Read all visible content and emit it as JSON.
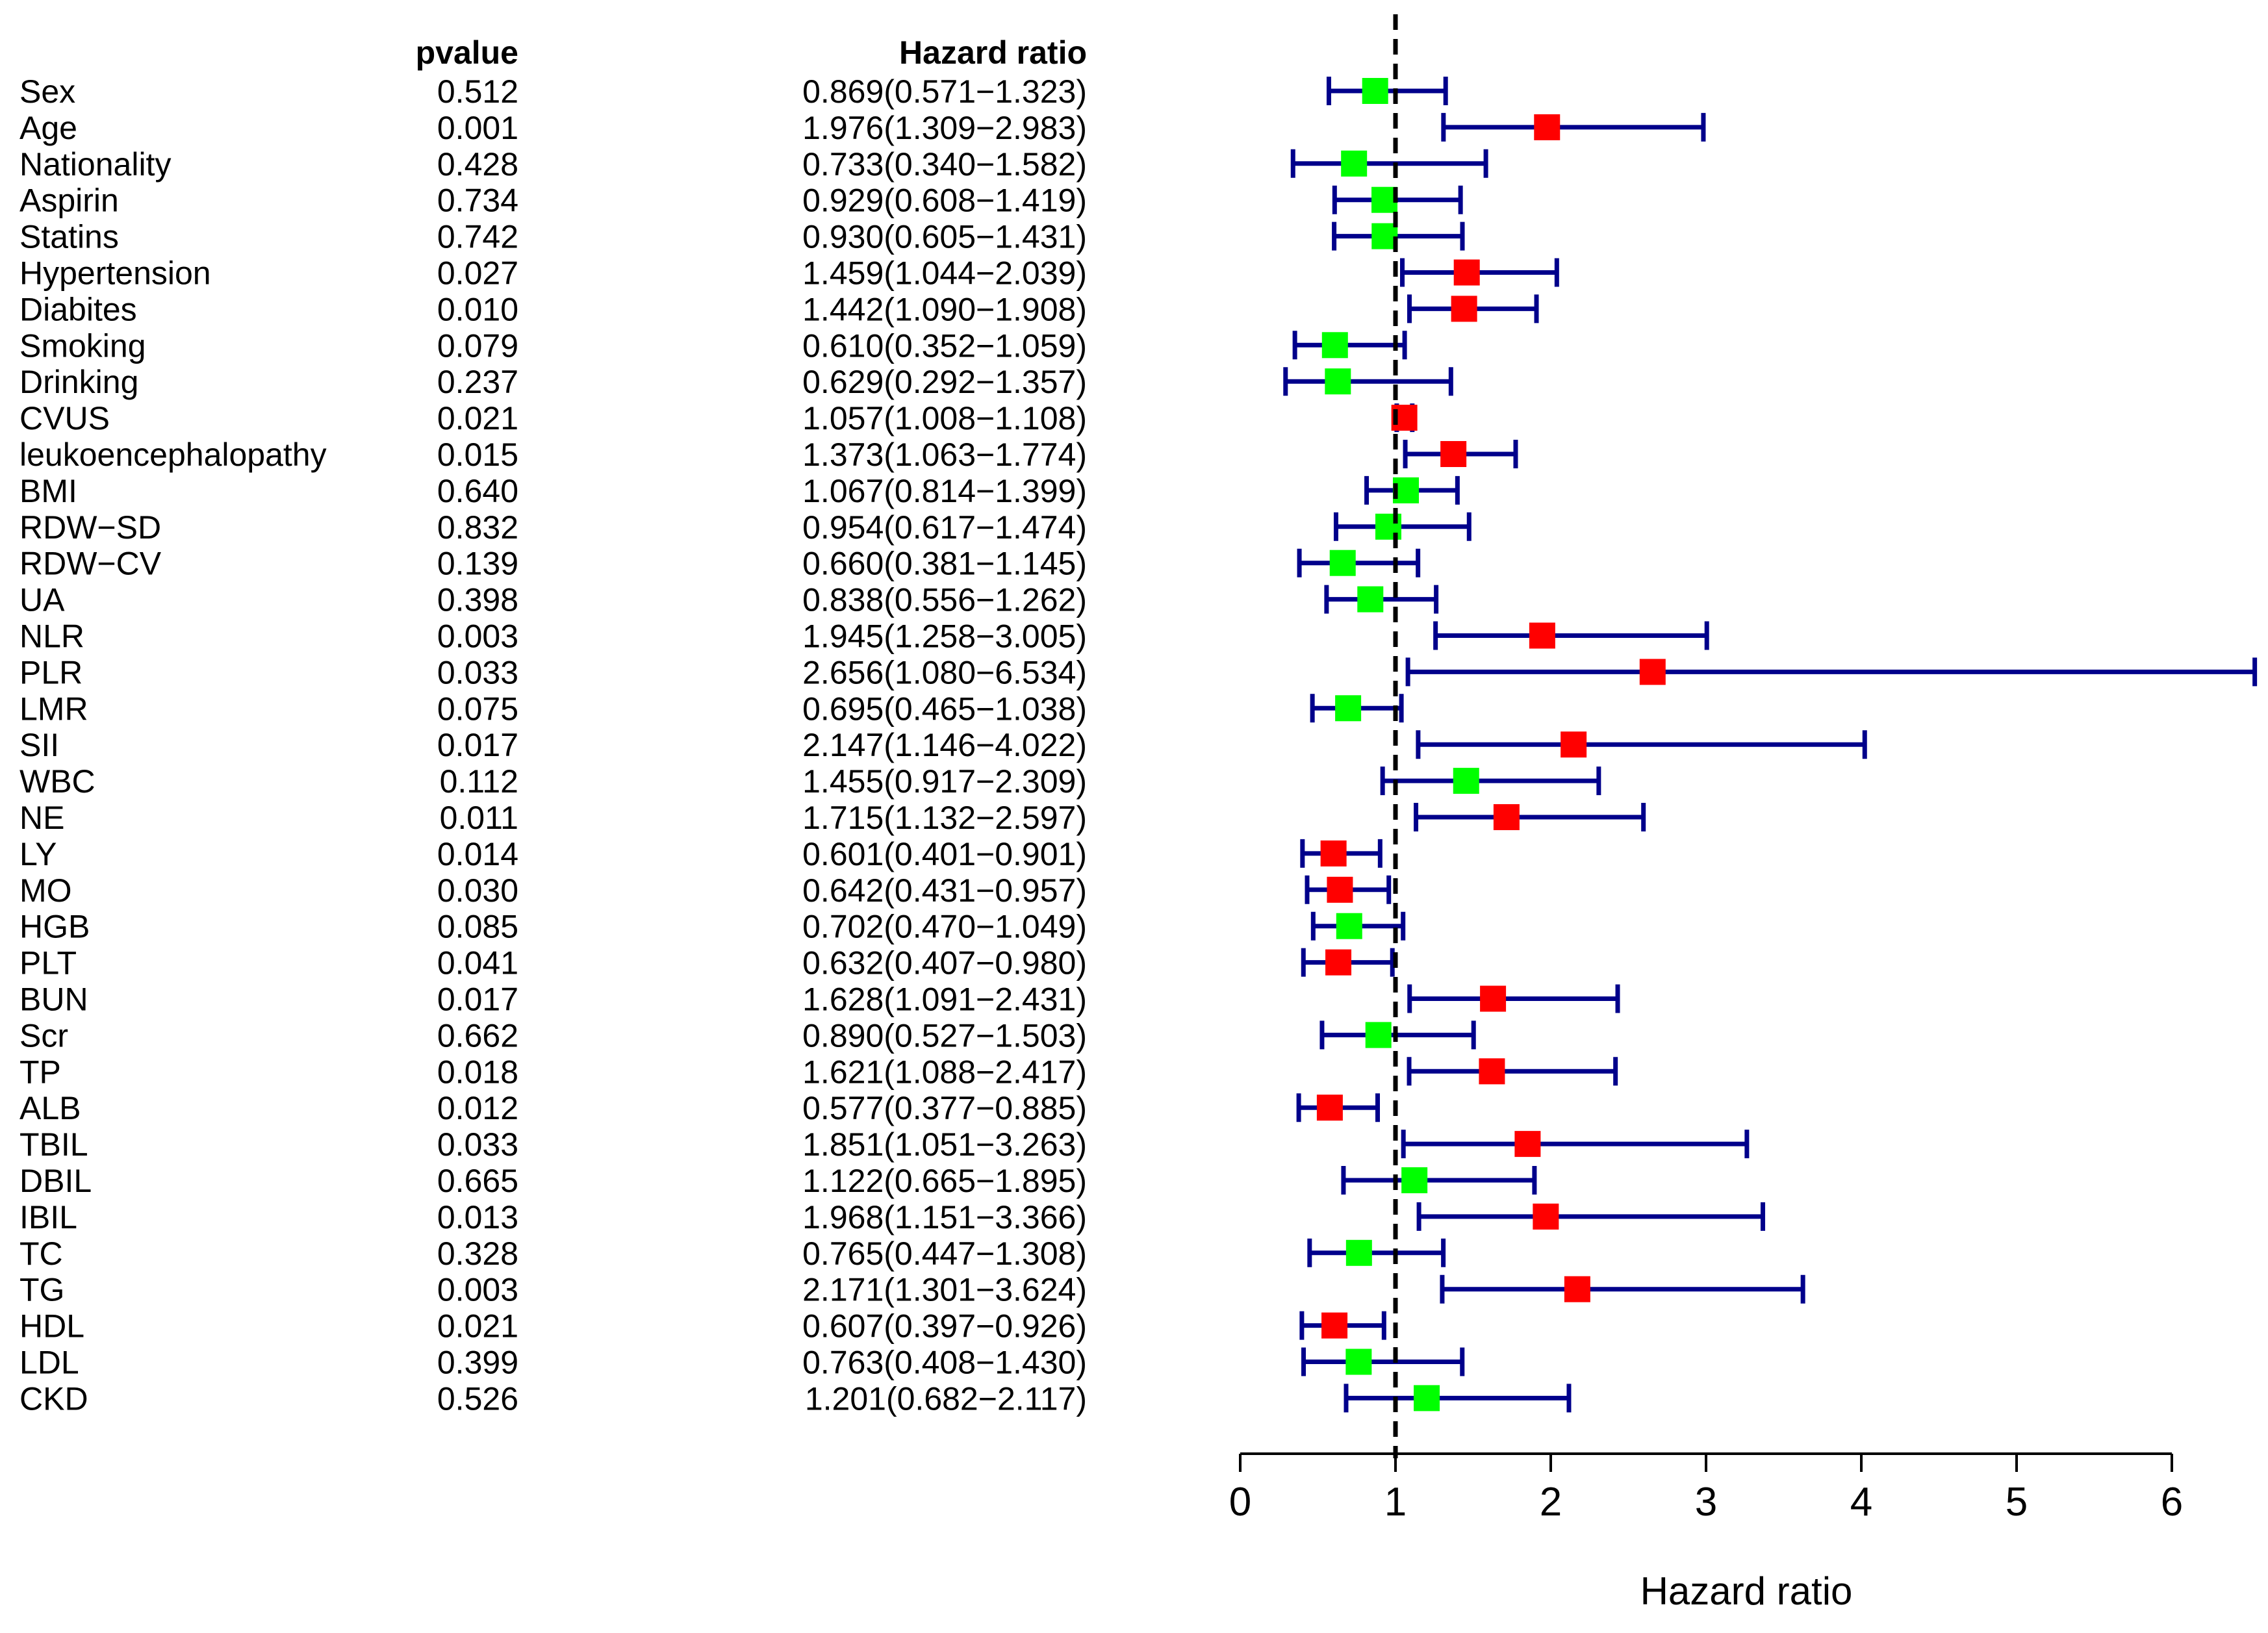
{
  "chart_data": {
    "type": "forest",
    "columns": {
      "variable": "",
      "pvalue": "pvalue",
      "hr": "Hazard ratio"
    },
    "xlabel": "Hazard ratio",
    "xlim": [
      0,
      6
    ],
    "ticks": [
      0,
      1,
      2,
      3,
      4,
      5,
      6
    ],
    "reference_line": 1,
    "colors": {
      "significant": "#ff0000",
      "not_significant": "#00ff00",
      "ci": "#00008b",
      "axis": "#000000",
      "text": "#000000"
    },
    "rows": [
      {
        "name": "Sex",
        "pvalue": "0.512",
        "hr_text": "0.869(0.571−1.323)",
        "hr": 0.869,
        "lower": 0.571,
        "upper": 1.323
      },
      {
        "name": "Age",
        "pvalue": "0.001",
        "hr_text": "1.976(1.309−2.983)",
        "hr": 1.976,
        "lower": 1.309,
        "upper": 2.983
      },
      {
        "name": "Nationality",
        "pvalue": "0.428",
        "hr_text": "0.733(0.340−1.582)",
        "hr": 0.733,
        "lower": 0.34,
        "upper": 1.582
      },
      {
        "name": "Aspirin",
        "pvalue": "0.734",
        "hr_text": "0.929(0.608−1.419)",
        "hr": 0.929,
        "lower": 0.608,
        "upper": 1.419
      },
      {
        "name": "Statins",
        "pvalue": "0.742",
        "hr_text": "0.930(0.605−1.431)",
        "hr": 0.93,
        "lower": 0.605,
        "upper": 1.431
      },
      {
        "name": "Hypertension",
        "pvalue": "0.027",
        "hr_text": "1.459(1.044−2.039)",
        "hr": 1.459,
        "lower": 1.044,
        "upper": 2.039
      },
      {
        "name": "Diabites",
        "pvalue": "0.010",
        "hr_text": "1.442(1.090−1.908)",
        "hr": 1.442,
        "lower": 1.09,
        "upper": 1.908
      },
      {
        "name": "Smoking",
        "pvalue": "0.079",
        "hr_text": "0.610(0.352−1.059)",
        "hr": 0.61,
        "lower": 0.352,
        "upper": 1.059
      },
      {
        "name": "Drinking",
        "pvalue": "0.237",
        "hr_text": "0.629(0.292−1.357)",
        "hr": 0.629,
        "lower": 0.292,
        "upper": 1.357
      },
      {
        "name": "CVUS",
        "pvalue": "0.021",
        "hr_text": "1.057(1.008−1.108)",
        "hr": 1.057,
        "lower": 1.008,
        "upper": 1.108
      },
      {
        "name": "leukoencephalopathy",
        "pvalue": "0.015",
        "hr_text": "1.373(1.063−1.774)",
        "hr": 1.373,
        "lower": 1.063,
        "upper": 1.774
      },
      {
        "name": "BMI",
        "pvalue": "0.640",
        "hr_text": "1.067(0.814−1.399)",
        "hr": 1.067,
        "lower": 0.814,
        "upper": 1.399
      },
      {
        "name": "RDW−SD",
        "pvalue": "0.832",
        "hr_text": "0.954(0.617−1.474)",
        "hr": 0.954,
        "lower": 0.617,
        "upper": 1.474
      },
      {
        "name": "RDW−CV",
        "pvalue": "0.139",
        "hr_text": "0.660(0.381−1.145)",
        "hr": 0.66,
        "lower": 0.381,
        "upper": 1.145
      },
      {
        "name": "UA",
        "pvalue": "0.398",
        "hr_text": "0.838(0.556−1.262)",
        "hr": 0.838,
        "lower": 0.556,
        "upper": 1.262
      },
      {
        "name": "NLR",
        "pvalue": "0.003",
        "hr_text": "1.945(1.258−3.005)",
        "hr": 1.945,
        "lower": 1.258,
        "upper": 3.005
      },
      {
        "name": "PLR",
        "pvalue": "0.033",
        "hr_text": "2.656(1.080−6.534)",
        "hr": 2.656,
        "lower": 1.08,
        "upper": 6.534
      },
      {
        "name": "LMR",
        "pvalue": "0.075",
        "hr_text": "0.695(0.465−1.038)",
        "hr": 0.695,
        "lower": 0.465,
        "upper": 1.038
      },
      {
        "name": "SII",
        "pvalue": "0.017",
        "hr_text": "2.147(1.146−4.022)",
        "hr": 2.147,
        "lower": 1.146,
        "upper": 4.022
      },
      {
        "name": "WBC",
        "pvalue": "0.112",
        "hr_text": "1.455(0.917−2.309)",
        "hr": 1.455,
        "lower": 0.917,
        "upper": 2.309
      },
      {
        "name": "NE",
        "pvalue": "0.011",
        "hr_text": "1.715(1.132−2.597)",
        "hr": 1.715,
        "lower": 1.132,
        "upper": 2.597
      },
      {
        "name": "LY",
        "pvalue": "0.014",
        "hr_text": "0.601(0.401−0.901)",
        "hr": 0.601,
        "lower": 0.401,
        "upper": 0.901
      },
      {
        "name": "MO",
        "pvalue": "0.030",
        "hr_text": "0.642(0.431−0.957)",
        "hr": 0.642,
        "lower": 0.431,
        "upper": 0.957
      },
      {
        "name": "HGB",
        "pvalue": "0.085",
        "hr_text": "0.702(0.470−1.049)",
        "hr": 0.702,
        "lower": 0.47,
        "upper": 1.049
      },
      {
        "name": "PLT",
        "pvalue": "0.041",
        "hr_text": "0.632(0.407−0.980)",
        "hr": 0.632,
        "lower": 0.407,
        "upper": 0.98
      },
      {
        "name": "BUN",
        "pvalue": "0.017",
        "hr_text": "1.628(1.091−2.431)",
        "hr": 1.628,
        "lower": 1.091,
        "upper": 2.431
      },
      {
        "name": "Scr",
        "pvalue": "0.662",
        "hr_text": "0.890(0.527−1.503)",
        "hr": 0.89,
        "lower": 0.527,
        "upper": 1.503
      },
      {
        "name": "TP",
        "pvalue": "0.018",
        "hr_text": "1.621(1.088−2.417)",
        "hr": 1.621,
        "lower": 1.088,
        "upper": 2.417
      },
      {
        "name": "ALB",
        "pvalue": "0.012",
        "hr_text": "0.577(0.377−0.885)",
        "hr": 0.577,
        "lower": 0.377,
        "upper": 0.885
      },
      {
        "name": "TBIL",
        "pvalue": "0.033",
        "hr_text": "1.851(1.051−3.263)",
        "hr": 1.851,
        "lower": 1.051,
        "upper": 3.263
      },
      {
        "name": "DBIL",
        "pvalue": "0.665",
        "hr_text": "1.122(0.665−1.895)",
        "hr": 1.122,
        "lower": 0.665,
        "upper": 1.895
      },
      {
        "name": "IBIL",
        "pvalue": "0.013",
        "hr_text": "1.968(1.151−3.366)",
        "hr": 1.968,
        "lower": 1.151,
        "upper": 3.366
      },
      {
        "name": "TC",
        "pvalue": "0.328",
        "hr_text": "0.765(0.447−1.308)",
        "hr": 0.765,
        "lower": 0.447,
        "upper": 1.308
      },
      {
        "name": "TG",
        "pvalue": "0.003",
        "hr_text": "2.171(1.301−3.624)",
        "hr": 2.171,
        "lower": 1.301,
        "upper": 3.624
      },
      {
        "name": "HDL",
        "pvalue": "0.021",
        "hr_text": "0.607(0.397−0.926)",
        "hr": 0.607,
        "lower": 0.397,
        "upper": 0.926
      },
      {
        "name": "LDL",
        "pvalue": "0.399",
        "hr_text": "0.763(0.408−1.430)",
        "hr": 0.763,
        "lower": 0.408,
        "upper": 1.43
      },
      {
        "name": "CKD",
        "pvalue": "0.526",
        "hr_text": "1.201(0.682−2.117)",
        "hr": 1.201,
        "lower": 0.682,
        "upper": 2.117
      }
    ]
  }
}
